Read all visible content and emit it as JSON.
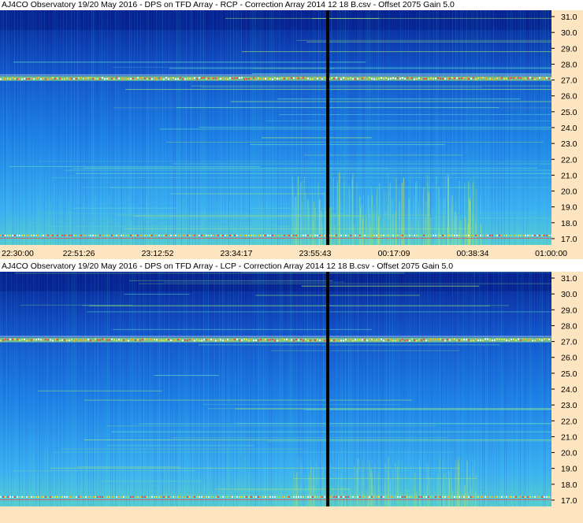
{
  "chart_data": [
    {
      "type": "heatmap",
      "title": "AJ4CO Observatory 19/20 May 2016  -  DPS on TFD Array  -  RCP  -  Correction Array 2014 12 18 B.csv  -  Offset 2075  Gain 5.0",
      "x_tick_labels": [
        "22:30:00",
        "22:51:26",
        "23:12:52",
        "23:34:17",
        "23:55:43",
        "00:17:09",
        "00:38:34",
        "01:00:00"
      ],
      "y_tick_labels": [
        "31.0",
        "30.0",
        "29.0",
        "28.0",
        "27.0",
        "26.0",
        "25.0",
        "24.0",
        "23.0",
        "22.0",
        "21.0",
        "20.0",
        "19.0",
        "18.0",
        "17.0"
      ],
      "ylim": [
        16.6,
        31.4
      ],
      "marker_time": "23:59:10",
      "colormap": [
        "#0a1e8c",
        "#1450c8",
        "#1e82e6",
        "#3cb4f0",
        "#5ad2c8",
        "#9ce678",
        "#f0f03c",
        "#ffb41e",
        "#ff3c3c",
        "#ffffff"
      ],
      "bright_band_mhz": 27.1
    },
    {
      "type": "heatmap",
      "title": "AJ4CO Observatory 19/20 May 2016  -  DPS on TFD Array  -  LCP  -  Correction Array 2014 12 18 B.csv  -  Offset 2075  Gain 5.0",
      "x_tick_labels": [],
      "y_tick_labels": [
        "31.0",
        "30.0",
        "29.0",
        "28.0",
        "27.0",
        "26.0",
        "25.0",
        "24.0",
        "23.0",
        "22.0",
        "21.0",
        "20.0",
        "19.0",
        "18.0",
        "17.0"
      ],
      "ylim": [
        16.6,
        31.4
      ],
      "marker_time": "23:59:10",
      "colormap": [
        "#0a1e8c",
        "#1450c8",
        "#1e82e6",
        "#3cb4f0",
        "#5ad2c8",
        "#9ce678",
        "#f0f03c",
        "#ffb41e",
        "#ff3c3c",
        "#ffffff"
      ],
      "bright_band_mhz": 27.1
    }
  ]
}
